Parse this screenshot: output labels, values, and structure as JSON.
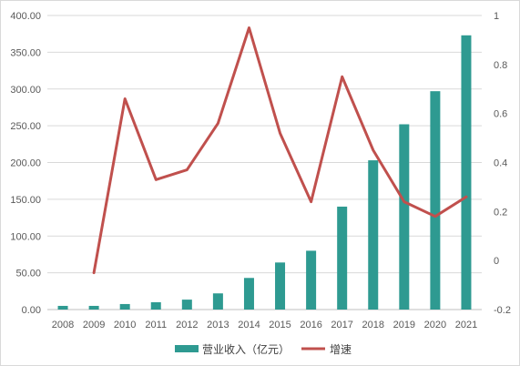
{
  "chart_data": {
    "type": "bar",
    "categories": [
      "2008",
      "2009",
      "2010",
      "2011",
      "2012",
      "2013",
      "2014",
      "2015",
      "2016",
      "2017",
      "2018",
      "2019",
      "2020",
      "2021"
    ],
    "series": [
      {
        "name": "营业收入（亿元）",
        "type": "bar",
        "axis": "left",
        "color": "#2e9a91",
        "values": [
          5,
          5,
          7.5,
          10,
          13.5,
          22,
          43,
          64,
          80,
          140,
          203,
          252,
          297,
          373
        ]
      },
      {
        "name": "增速",
        "type": "line",
        "axis": "right",
        "color": "#c0504d",
        "values": [
          null,
          -0.05,
          0.66,
          0.33,
          0.37,
          0.56,
          0.95,
          0.52,
          0.24,
          0.75,
          0.45,
          0.24,
          0.18,
          0.26
        ]
      }
    ],
    "title": "",
    "xlabel": "",
    "ylabel": "",
    "ylim_left": [
      0,
      400
    ],
    "yticks_left": [
      "0.00",
      "50.00",
      "100.00",
      "150.00",
      "200.00",
      "250.00",
      "300.00",
      "350.00",
      "400.00"
    ],
    "ylim_right": [
      -0.2,
      1
    ],
    "yticks_right": [
      "-0.2",
      "0",
      "0.2",
      "0.4",
      "0.6",
      "0.8",
      "1"
    ],
    "grid": "horizontal",
    "legend": "bottom-center"
  }
}
